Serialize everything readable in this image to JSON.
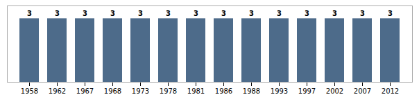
{
  "chart_data": {
    "type": "bar",
    "categories": [
      "1958",
      "1962",
      "1967",
      "1968",
      "1973",
      "1978",
      "1981",
      "1986",
      "1988",
      "1993",
      "1997",
      "2002",
      "2007",
      "2012"
    ],
    "values": [
      3,
      3,
      3,
      3,
      3,
      3,
      3,
      3,
      3,
      3,
      3,
      3,
      3,
      3
    ],
    "color": "#4d6b8a",
    "ylim": [
      0,
      3.6
    ],
    "yticks": [],
    "grid": false,
    "data_labels": true,
    "tick_labels": "x"
  }
}
